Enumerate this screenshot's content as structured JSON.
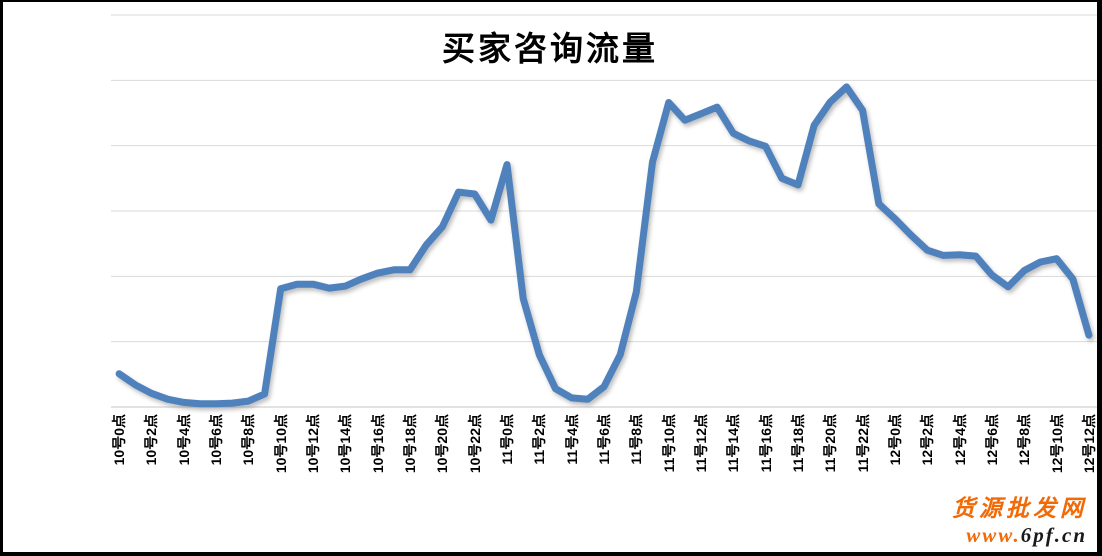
{
  "chart_data": {
    "type": "line",
    "title": "买家咨询流量",
    "xlabel": "",
    "ylabel": "",
    "legend_visible": false,
    "y_axis_labels_visible": false,
    "grid_on": true,
    "gridline_count": 7,
    "ylim": [
      0,
      6
    ],
    "categories": [
      "10号0点",
      "10号2点",
      "10号4点",
      "10号6点",
      "10号8点",
      "10号10点",
      "10号12点",
      "10号14点",
      "10号16点",
      "10号18点",
      "10号20点",
      "10号22点",
      "11号0点",
      "11号2点",
      "11号4点",
      "11号6点",
      "11号8点",
      "11号10点",
      "11号12点",
      "11号14点",
      "11号16点",
      "11号18点",
      "11号20点",
      "11号22点",
      "12号0点",
      "12号2点",
      "12号4点",
      "12号6点",
      "12号8点",
      "12号10点",
      "12号12点"
    ],
    "points_per_label": 2,
    "n_points": 61,
    "series": [
      {
        "name": "买家咨询流量",
        "values": [
          0.51,
          0.34,
          0.21,
          0.12,
          0.07,
          0.05,
          0.05,
          0.06,
          0.09,
          0.2,
          1.81,
          1.88,
          1.88,
          1.82,
          1.85,
          1.96,
          2.05,
          2.1,
          2.1,
          2.48,
          2.76,
          3.29,
          3.26,
          2.86,
          3.71,
          1.66,
          0.8,
          0.28,
          0.14,
          0.12,
          0.31,
          0.8,
          1.76,
          3.75,
          4.66,
          4.39,
          4.49,
          4.59,
          4.19,
          4.07,
          3.99,
          3.5,
          3.4,
          4.31,
          4.67,
          4.9,
          4.54,
          3.11,
          2.88,
          2.63,
          2.4,
          2.32,
          2.33,
          2.31,
          2.02,
          1.84,
          2.09,
          2.22,
          2.27,
          1.96,
          1.1
        ]
      }
    ],
    "colors": {
      "line": "#4F81BD",
      "gridline": "#D9D9D9",
      "axis_line": "#C6C6C6",
      "background": "#FFFFFF",
      "border": "#000000"
    }
  },
  "watermark": {
    "line1": "货源批发网",
    "url_orange": "www.",
    "url_dark": "6pf.cn",
    "orange_color": "#F26A07",
    "dark_color": "#1A1A1A"
  }
}
